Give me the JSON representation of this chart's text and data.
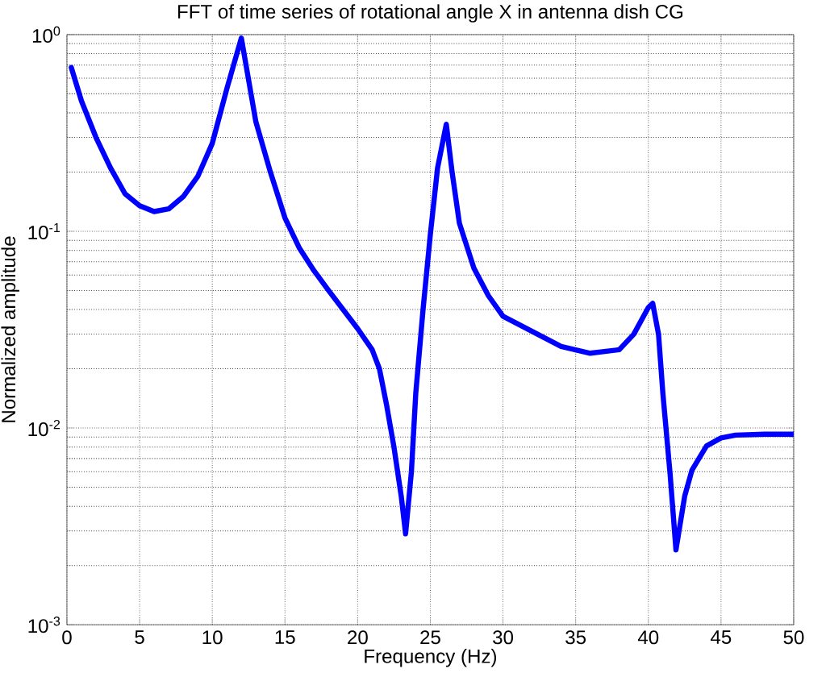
{
  "chart_data": {
    "type": "line",
    "title": "FFT of time series of rotational angle X in antenna dish CG",
    "xlabel": "Frequency (Hz)",
    "ylabel": "Normalized amplitude",
    "log": "y",
    "grid": true,
    "marker": "none",
    "line_style": "solid",
    "xlim": [
      0,
      50
    ],
    "xticks": [
      0,
      5,
      10,
      15,
      20,
      25,
      30,
      35,
      40,
      45,
      50
    ],
    "ylim": [
      0.001,
      1
    ],
    "yticks": [
      {
        "value": 0.001,
        "label": "10$^{-3}$"
      },
      {
        "value": 0.01,
        "label": "10$^{-2}$"
      },
      {
        "value": 0.1,
        "label": "10$^{-1}$"
      },
      {
        "value": 1,
        "label": "10$^{0}$"
      }
    ],
    "series": [
      {
        "color": "#0000ff",
        "x": [
          0.3,
          1,
          2,
          3,
          4,
          5,
          6,
          7,
          8,
          9,
          10,
          11,
          12,
          13,
          14,
          15,
          16,
          17,
          18,
          19,
          20,
          21,
          21.5,
          22,
          22.5,
          23,
          23.3,
          23.7,
          24,
          24.5,
          25,
          25.5,
          26.1,
          26.5,
          27,
          28,
          29,
          30,
          32,
          34,
          36,
          38,
          39,
          40,
          40.3,
          40.7,
          41,
          41.5,
          41.9,
          42.5,
          43,
          44,
          45,
          46,
          48,
          50
        ],
        "values": [
          0.68,
          0.46,
          0.3,
          0.21,
          0.155,
          0.135,
          0.126,
          0.13,
          0.15,
          0.19,
          0.28,
          0.53,
          0.96,
          0.36,
          0.2,
          0.117,
          0.082,
          0.063,
          0.05,
          0.04,
          0.032,
          0.025,
          0.02,
          0.013,
          0.008,
          0.0045,
          0.0029,
          0.006,
          0.015,
          0.04,
          0.096,
          0.21,
          0.35,
          0.2,
          0.11,
          0.065,
          0.047,
          0.037,
          0.031,
          0.026,
          0.024,
          0.025,
          0.03,
          0.041,
          0.043,
          0.03,
          0.015,
          0.0058,
          0.0024,
          0.0045,
          0.0061,
          0.0081,
          0.0089,
          0.0092,
          0.0093,
          0.0093
        ]
      }
    ]
  }
}
